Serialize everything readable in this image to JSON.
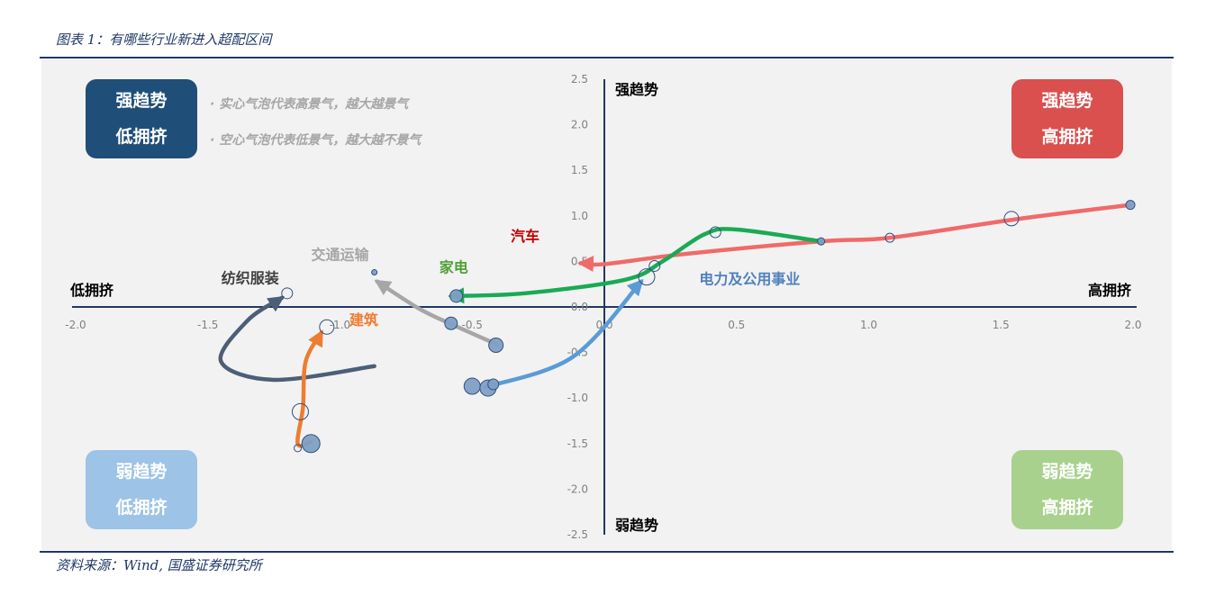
{
  "caption": "图表 1：有哪些行业新进入超配区间",
  "source": "资料来源：Wind, 国盛证券研究所",
  "quadrants": {
    "top_left": [
      "强趋势",
      "低拥挤"
    ],
    "top_right": [
      "强趋势",
      "高拥挤"
    ],
    "bottom_left": [
      "弱趋势",
      "低拥挤"
    ],
    "bottom_right": [
      "弱趋势",
      "高拥挤"
    ]
  },
  "notes": [
    "· 实心气泡代表高景气，越大越景气",
    "· 空心气泡代表低景气，越大越不景气"
  ],
  "axis_labels": {
    "top": "强趋势",
    "bottom": "弱趋势",
    "left": "低拥挤",
    "right": "高拥挤"
  },
  "chart_data": {
    "type": "scatter",
    "xlim": [
      -2.0,
      2.0
    ],
    "ylim": [
      -2.5,
      2.5
    ],
    "x_ticks": [
      "-2.0",
      "-1.5",
      "-1.0",
      "-0.5",
      "0.0",
      "0.5",
      "1.0",
      "1.5",
      "2.0"
    ],
    "y_ticks": [
      "2.5",
      "2.0",
      "1.5",
      "1.0",
      "0.5",
      "0.0",
      "-0.5",
      "-1.0",
      "-1.5",
      "-2.0",
      "-2.5"
    ],
    "series": [
      {
        "name": "汽车",
        "color": "#f06a6a",
        "path": [
          [
            1.99,
            1.12
          ],
          [
            1.55,
            0.96
          ],
          [
            1.08,
            0.76
          ],
          [
            0.82,
            0.72
          ],
          [
            0.3,
            0.58
          ],
          [
            0.0,
            0.47
          ],
          [
            -0.09,
            0.48
          ]
        ],
        "bubbles": [
          [
            1.99,
            1.12,
            5,
            "filled"
          ],
          [
            1.54,
            0.97,
            8,
            "hollow"
          ],
          [
            1.08,
            0.76,
            5,
            "hollow"
          ]
        ]
      },
      {
        "name": "家电",
        "color": "#1aaa55",
        "path": [
          [
            0.82,
            0.72
          ],
          [
            0.5,
            0.85
          ],
          [
            0.38,
            0.8
          ],
          [
            0.22,
            0.5
          ],
          [
            0.08,
            0.3
          ],
          [
            -0.3,
            0.15
          ],
          [
            -0.58,
            0.12
          ]
        ],
        "bubbles": [
          [
            0.82,
            0.72,
            4,
            "filled"
          ],
          [
            0.42,
            0.82,
            6,
            "hollow"
          ],
          [
            -0.56,
            0.12,
            7,
            "filled"
          ]
        ]
      },
      {
        "name": "电力及公用事业",
        "color": "#5b9bd5",
        "path": [
          [
            -0.45,
            -0.88
          ],
          [
            -0.12,
            -0.55
          ],
          [
            0.14,
            0.28
          ]
        ],
        "bubbles": [
          [
            -0.5,
            -0.87,
            9,
            "filled"
          ],
          [
            -0.44,
            -0.89,
            9,
            "filled"
          ],
          [
            -0.42,
            -0.85,
            6,
            "filled"
          ],
          [
            0.16,
            0.33,
            9,
            "hollow"
          ],
          [
            0.19,
            0.45,
            6,
            "hollow"
          ]
        ]
      },
      {
        "name": "交通运输",
        "color": "#a6a6a6",
        "path": [
          [
            -0.4,
            -0.42
          ],
          [
            -0.57,
            -0.2
          ],
          [
            -0.7,
            -0.02
          ],
          [
            -0.86,
            0.28
          ]
        ],
        "bubbles": [
          [
            -0.41,
            -0.42,
            8,
            "filled"
          ],
          [
            -0.58,
            -0.18,
            7,
            "filled"
          ],
          [
            -0.87,
            0.38,
            3,
            "filled"
          ]
        ]
      },
      {
        "name": "纺织服装",
        "color": "#4d5e77",
        "path": [
          [
            -0.87,
            -0.65
          ],
          [
            -1.25,
            -0.8
          ],
          [
            -1.45,
            -0.6
          ],
          [
            -1.35,
            -0.15
          ],
          [
            -1.22,
            0.1
          ]
        ],
        "bubbles": [
          [
            -1.2,
            0.15,
            6,
            "hollow"
          ]
        ]
      },
      {
        "name": "建筑",
        "color": "#ed7d31",
        "path": [
          [
            -1.11,
            -1.48
          ],
          [
            -1.16,
            -1.5
          ],
          [
            -1.14,
            -1.1
          ],
          [
            -1.13,
            -0.6
          ],
          [
            -1.07,
            -0.28
          ]
        ],
        "bubbles": [
          [
            -1.11,
            -1.5,
            10,
            "filled"
          ],
          [
            -1.16,
            -1.55,
            4,
            "hollow"
          ],
          [
            -1.15,
            -1.15,
            9,
            "hollow"
          ],
          [
            -1.05,
            -0.22,
            8,
            "hollow"
          ]
        ]
      }
    ],
    "labels": [
      {
        "text": "汽车",
        "x": -0.3,
        "y": 0.72,
        "color": "#c00000"
      },
      {
        "text": "家电",
        "x": -0.57,
        "y": 0.38,
        "color": "#50a034"
      },
      {
        "text": "电力及公用事业",
        "x": 0.55,
        "y": 0.25,
        "color": "#4f81bd"
      },
      {
        "text": "交通运输",
        "x": -1.0,
        "y": 0.52,
        "color": "#a6a6a6"
      },
      {
        "text": "纺织服装",
        "x": -1.34,
        "y": 0.26,
        "color": "#404040"
      },
      {
        "text": "建筑",
        "x": -0.91,
        "y": -0.2,
        "color": "#ed7d31"
      }
    ],
    "grid": false,
    "bubble_legend": "in-plot note (top-left)"
  }
}
